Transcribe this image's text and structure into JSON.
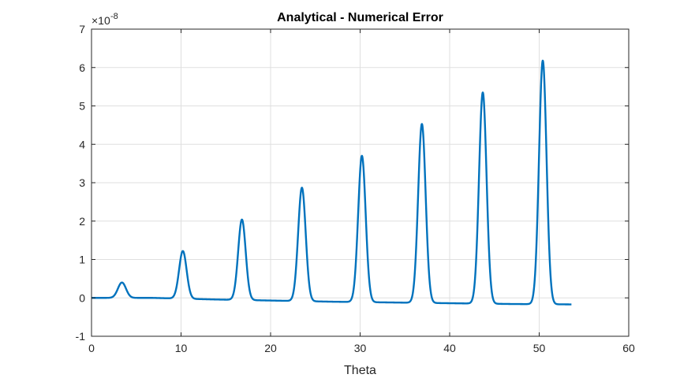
{
  "chart_data": {
    "type": "line",
    "title": "Analytical - Numerical Error",
    "xlabel": "Theta",
    "ylabel": "",
    "xlim": [
      0,
      60
    ],
    "ylim": [
      -1,
      7
    ],
    "y_scale_factor_base": "×10",
    "y_scale_factor_exponent": "-8",
    "x_ticks": [
      "0",
      "10",
      "20",
      "30",
      "40",
      "50",
      "60"
    ],
    "y_ticks": [
      "-1",
      "0",
      "1",
      "2",
      "3",
      "4",
      "5",
      "6",
      "7"
    ],
    "grid": true,
    "series": [
      {
        "color": "#0072BD",
        "x_end": 53.6,
        "peaks": [
          {
            "x": 3.4,
            "y": 0.4
          },
          {
            "x": 10.2,
            "y": 1.22
          },
          {
            "x": 16.8,
            "y": 2.04
          },
          {
            "x": 23.5,
            "y": 2.87
          },
          {
            "x": 30.2,
            "y": 3.7
          },
          {
            "x": 36.9,
            "y": 4.53
          },
          {
            "x": 43.7,
            "y": 5.35
          },
          {
            "x": 50.4,
            "y": 6.18
          }
        ],
        "troughs": [
          {
            "x": 0.0,
            "y": 0.0
          },
          {
            "x": 6.8,
            "y": 0.0
          },
          {
            "x": 13.5,
            "y": -0.04
          },
          {
            "x": 20.2,
            "y": -0.07
          },
          {
            "x": 26.9,
            "y": -0.1
          },
          {
            "x": 33.6,
            "y": -0.12
          },
          {
            "x": 40.3,
            "y": -0.14
          },
          {
            "x": 47.0,
            "y": -0.16
          },
          {
            "x": 53.6,
            "y": -0.17
          }
        ]
      }
    ]
  }
}
